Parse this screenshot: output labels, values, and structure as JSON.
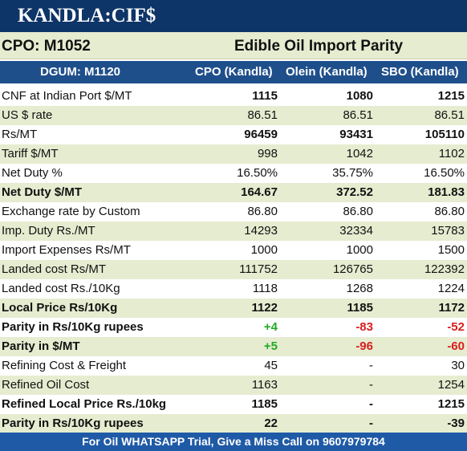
{
  "title": "KANDLA:CIF$",
  "subheader": {
    "left": "CPO: M1052",
    "right": "Edible Oil Import Parity"
  },
  "columns": [
    "DGUM: M1120",
    "CPO (Kandla)",
    "Olein (Kandla)",
    "SBO (Kandla)"
  ],
  "rows": [
    {
      "label": "CNF at Indian Port $/MT",
      "cpo": "1115",
      "olein": "1080",
      "sbo": "1215"
    },
    {
      "label": "US $ rate",
      "cpo": "86.51",
      "olein": "86.51",
      "sbo": "86.51"
    },
    {
      "label": "Rs/MT",
      "cpo": "96459",
      "olein": "93431",
      "sbo": "105110"
    },
    {
      "label": "Tariff $/MT",
      "cpo": "998",
      "olein": "1042",
      "sbo": "1102"
    },
    {
      "label": "Net Duty %",
      "cpo": "16.50%",
      "olein": "35.75%",
      "sbo": "16.50%"
    },
    {
      "label": "Net Duty $/MT",
      "cpo": "164.67",
      "olein": "372.52",
      "sbo": "181.83"
    },
    {
      "label": "Exchange rate by Custom",
      "cpo": "86.80",
      "olein": "86.80",
      "sbo": "86.80"
    },
    {
      "label": "Imp. Duty Rs./MT",
      "cpo": "14293",
      "olein": "32334",
      "sbo": "15783"
    },
    {
      "label": "Import Expenses Rs/MT",
      "cpo": "1000",
      "olein": "1000",
      "sbo": "1500"
    },
    {
      "label": "Landed cost Rs/MT",
      "cpo": "111752",
      "olein": "126765",
      "sbo": "122392"
    },
    {
      "label": "Landed cost Rs./10Kg",
      "cpo": "1118",
      "olein": "1268",
      "sbo": "1224"
    },
    {
      "label": "Local Price Rs/10Kg",
      "cpo": "1122",
      "olein": "1185",
      "sbo": "1172"
    },
    {
      "label": "Parity in Rs/10Kg rupees",
      "cpo": "+4",
      "olein": "-83",
      "sbo": "-52"
    },
    {
      "label": "Parity in $/MT",
      "cpo": "+5",
      "olein": "-96",
      "sbo": "-60"
    },
    {
      "label": "Refining Cost & Freight",
      "cpo": "45",
      "olein": "-",
      "sbo": "30"
    },
    {
      "label": "Refined Oil Cost",
      "cpo": "1163",
      "olein": "-",
      "sbo": "1254"
    },
    {
      "label": "Refined Local Price Rs./10kg",
      "cpo": "1185",
      "olein": "-",
      "sbo": "1215"
    },
    {
      "label": "Parity in Rs/10Kg rupees",
      "cpo": "22",
      "olein": "-",
      "sbo": "-39"
    }
  ],
  "footer": "For Oil WHATSAPP Trial, Give a Miss Call on 9607979784",
  "colors": {
    "title_bg": "#0e3568",
    "header_bg": "#1f4f8b",
    "alt_row": "#e6ecd0",
    "footer_bg": "#1f5aa6",
    "positive": "#22aa22",
    "negative": "#d81f1f"
  }
}
